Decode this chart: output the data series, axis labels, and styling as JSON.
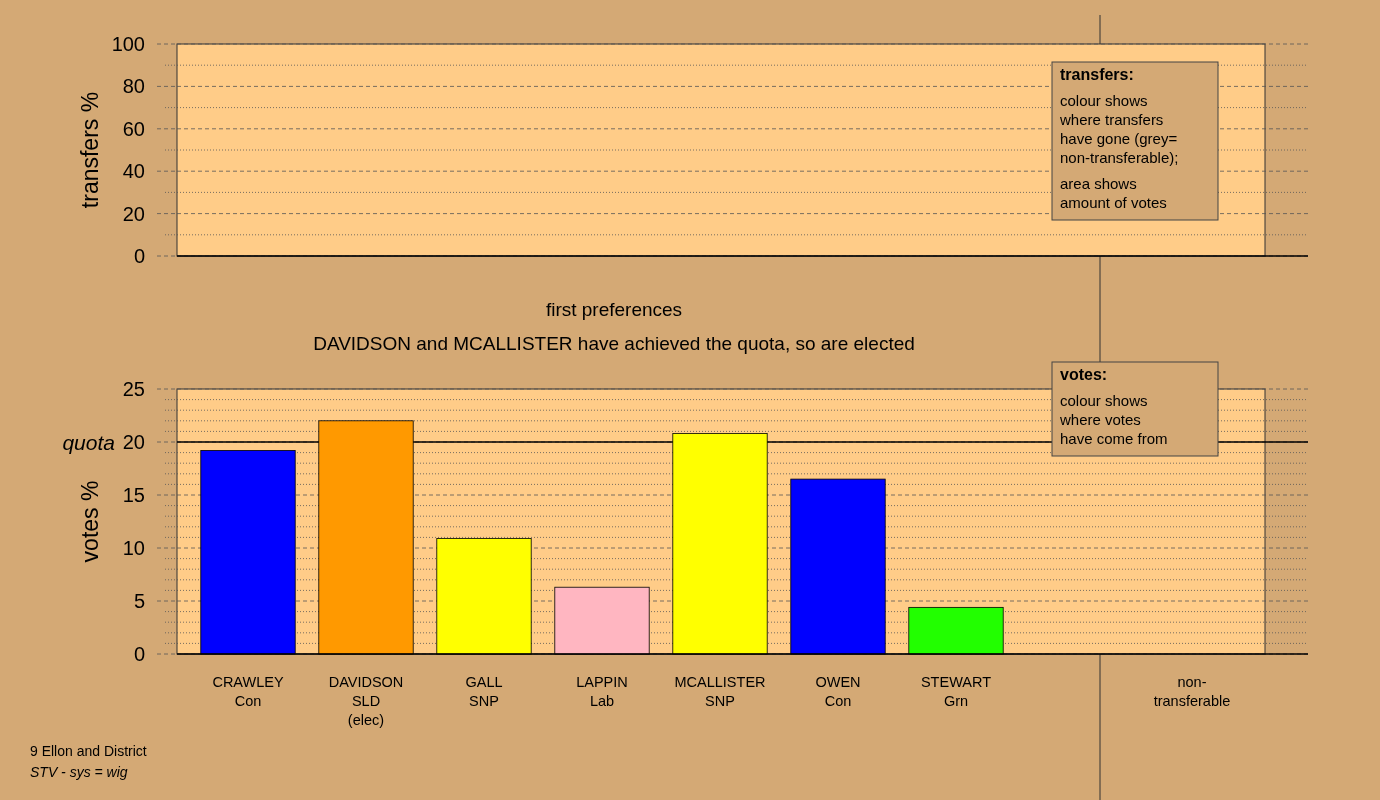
{
  "chart_data": [
    {
      "type": "bar",
      "ylabel": "transfers %",
      "categories": [
        null,
        null,
        null,
        null,
        null,
        null,
        null,
        null,
        null
      ],
      "values": [
        null,
        null,
        null,
        null,
        null,
        null,
        null,
        null,
        null
      ],
      "ylim": [
        0,
        100
      ],
      "yticks": [
        0,
        {
          "value": 10,
          "label": null
        },
        20,
        {
          "value": 30,
          "label": null
        },
        40,
        {
          "value": 50,
          "label": null
        },
        60,
        {
          "value": 70,
          "label": null
        },
        80,
        {
          "value": 90,
          "label": null
        },
        100
      ],
      "grid": "y",
      "tick_labels": "y",
      "annotations": [
        "transfers:",
        "colour shows\nwhere transfers\nhave gone (grey=\nnon-transferable);",
        "area shows\namount of votes"
      ]
    },
    {
      "type": "bar",
      "title": "first preferences",
      "subtitle": "DAVIDSON and MCALLISTER have achieved the quota, so are elected",
      "ylabel": "votes %",
      "categories": [
        "CRAWLEY\nCon",
        "DAVIDSON\nSLD\n(elec)",
        "GALL\nSNP",
        "LAPPIN\nLab",
        "MCALLISTER\nSNP",
        "OWEN\nCon",
        "STEWART\nGrn",
        null,
        "non-\ntransferable"
      ],
      "values": [
        19.2,
        22.0,
        10.9,
        6.3,
        20.8,
        16.5,
        4.4,
        null,
        0
      ],
      "colors": [
        "#0000ff",
        "#ff9900",
        "#ffff00",
        "#ffb6c1",
        "#ffff00",
        "#0000ff",
        "#22ff00",
        null,
        "#888888"
      ],
      "ylim": [
        0,
        25
      ],
      "yticks": [
        0,
        {
          "value": 1,
          "label": null
        },
        {
          "value": 2,
          "label": null
        },
        {
          "value": 3,
          "label": null
        },
        {
          "value": 4,
          "label": null
        },
        5,
        {
          "value": 6,
          "label": null
        },
        {
          "value": 7,
          "label": null
        },
        {
          "value": 8,
          "label": null
        },
        {
          "value": 9,
          "label": null
        },
        10,
        {
          "value": 11,
          "label": null
        },
        {
          "value": 12,
          "label": null
        },
        {
          "value": 13,
          "label": null
        },
        {
          "value": 14,
          "label": null
        },
        15,
        {
          "value": 16,
          "label": null
        },
        {
          "value": 17,
          "label": null
        },
        {
          "value": 18,
          "label": null
        },
        {
          "value": 19,
          "label": null
        },
        20,
        {
          "value": 21,
          "label": null
        },
        {
          "value": 22,
          "label": null
        },
        {
          "value": 23,
          "label": null
        },
        {
          "value": 24,
          "label": null
        },
        25
      ],
      "grid": "y",
      "ref_lines": [
        {
          "axis": "y",
          "value": 20,
          "label": "quota"
        }
      ],
      "annotations": [
        "votes:",
        "colour shows\nwhere votes\nhave come from",
        "9 Ellon and District",
        "STV - sys = wig"
      ]
    }
  ]
}
